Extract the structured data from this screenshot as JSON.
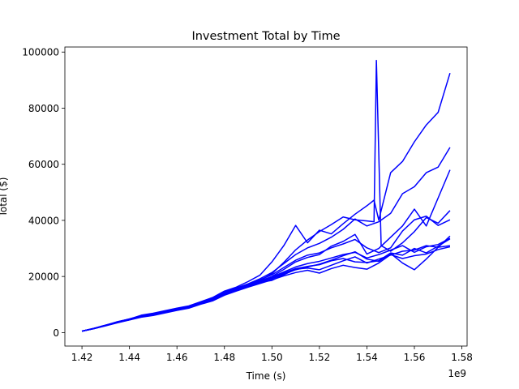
{
  "chart_data": {
    "type": "line",
    "title": "Investment Total by Time",
    "xlabel": "Time (s)",
    "ylabel": "Total ($)",
    "x_offset_label": "1e9",
    "xlim": [
      1.4128,
      1.5822
    ],
    "ylim": [
      -4800,
      101800
    ],
    "x_ticks": [
      1.42,
      1.44,
      1.46,
      1.48,
      1.5,
      1.52,
      1.54,
      1.56,
      1.58
    ],
    "x_tick_labels": [
      "1.42",
      "1.44",
      "1.46",
      "1.48",
      "1.50",
      "1.52",
      "1.54",
      "1.56",
      "1.58"
    ],
    "y_ticks": [
      0,
      20000,
      40000,
      60000,
      80000,
      100000
    ],
    "y_tick_labels": [
      "0",
      "20000",
      "40000",
      "60000",
      "80000",
      "100000"
    ],
    "line_color": "#0000ff",
    "grid": false,
    "legend": "none",
    "series": [
      {
        "x": [
          1.42,
          1.425,
          1.43,
          1.435,
          1.44,
          1.445,
          1.45,
          1.455,
          1.46,
          1.465,
          1.47,
          1.475,
          1.48,
          1.485,
          1.49,
          1.495,
          1.5,
          1.505,
          1.51,
          1.515,
          1.52,
          1.525,
          1.53,
          1.535,
          1.54,
          1.543,
          1.545,
          1.55,
          1.555,
          1.56,
          1.565,
          1.57,
          1.575
        ],
        "y": [
          500,
          1500,
          2600,
          3900,
          4800,
          6200,
          6900,
          7800,
          8700,
          9500,
          11000,
          12500,
          14800,
          16200,
          18200,
          20500,
          25200,
          31000,
          38200,
          32000,
          36500,
          35200,
          38800,
          42200,
          45200,
          47200,
          40100,
          57000,
          61000,
          68000,
          74000,
          78500,
          92500
        ]
      },
      {
        "x": [
          1.42,
          1.425,
          1.43,
          1.435,
          1.44,
          1.445,
          1.45,
          1.455,
          1.46,
          1.465,
          1.47,
          1.475,
          1.48,
          1.485,
          1.49,
          1.495,
          1.5,
          1.505,
          1.51,
          1.515,
          1.52,
          1.525,
          1.53,
          1.535,
          1.54,
          1.543,
          1.544,
          1.546,
          1.55,
          1.555,
          1.56,
          1.565,
          1.57,
          1.575
        ],
        "y": [
          500,
          1400,
          2500,
          3600,
          4600,
          5800,
          6600,
          7500,
          8400,
          9300,
          10800,
          12000,
          14000,
          15600,
          17000,
          18500,
          21000,
          25000,
          29500,
          33000,
          36000,
          38500,
          41200,
          40200,
          39800,
          39500,
          97000,
          31000,
          29000,
          32000,
          36000,
          41000,
          39000,
          43500
        ]
      },
      {
        "x": [
          1.42,
          1.425,
          1.43,
          1.435,
          1.44,
          1.445,
          1.45,
          1.455,
          1.46,
          1.465,
          1.47,
          1.475,
          1.48,
          1.485,
          1.49,
          1.495,
          1.5,
          1.505,
          1.51,
          1.515,
          1.52,
          1.525,
          1.53,
          1.535,
          1.54,
          1.545,
          1.55,
          1.555,
          1.56,
          1.565,
          1.57,
          1.575
        ],
        "y": [
          500,
          1500,
          2700,
          3800,
          4900,
          6000,
          6800,
          7700,
          8600,
          9400,
          10900,
          12300,
          14500,
          15900,
          17400,
          19200,
          21400,
          24600,
          27800,
          30200,
          31800,
          34000,
          36800,
          40500,
          38000,
          39500,
          42500,
          49500,
          52000,
          57000,
          59000,
          66000
        ]
      },
      {
        "x": [
          1.42,
          1.425,
          1.43,
          1.435,
          1.44,
          1.445,
          1.45,
          1.455,
          1.46,
          1.465,
          1.47,
          1.475,
          1.48,
          1.485,
          1.49,
          1.495,
          1.5,
          1.505,
          1.51,
          1.515,
          1.52,
          1.525,
          1.53,
          1.535,
          1.54,
          1.545,
          1.55,
          1.555,
          1.56,
          1.565,
          1.57,
          1.575
        ],
        "y": [
          500,
          1400,
          2500,
          3700,
          4700,
          5700,
          6500,
          7400,
          8300,
          9100,
          10600,
          11900,
          14100,
          15600,
          17000,
          18400,
          20000,
          22500,
          25200,
          26800,
          27800,
          30800,
          32500,
          35000,
          28000,
          30000,
          34000,
          38000,
          44000,
          38000,
          48000,
          58000
        ]
      },
      {
        "x": [
          1.42,
          1.425,
          1.43,
          1.435,
          1.44,
          1.445,
          1.45,
          1.455,
          1.46,
          1.465,
          1.47,
          1.475,
          1.48,
          1.485,
          1.49,
          1.495,
          1.5,
          1.505,
          1.51,
          1.515,
          1.52,
          1.525,
          1.53,
          1.535,
          1.54,
          1.545,
          1.55,
          1.555,
          1.56,
          1.565,
          1.57,
          1.575
        ],
        "y": [
          500,
          1500,
          2600,
          3800,
          4800,
          5900,
          6700,
          7600,
          8500,
          9300,
          10800,
          12200,
          14200,
          15700,
          17200,
          18800,
          20600,
          23200,
          25800,
          27600,
          28400,
          30200,
          31600,
          33200,
          30200,
          28500,
          30200,
          36200,
          40200,
          41500,
          38200,
          40200
        ]
      },
      {
        "x": [
          1.42,
          1.425,
          1.43,
          1.435,
          1.44,
          1.445,
          1.45,
          1.455,
          1.46,
          1.465,
          1.47,
          1.475,
          1.48,
          1.485,
          1.49,
          1.495,
          1.5,
          1.505,
          1.51,
          1.515,
          1.52,
          1.525,
          1.53,
          1.535,
          1.54,
          1.545,
          1.55,
          1.555,
          1.56,
          1.565,
          1.57,
          1.575
        ],
        "y": [
          500,
          1400,
          2400,
          3500,
          4500,
          5600,
          6200,
          7200,
          8100,
          8900,
          10300,
          11500,
          13500,
          15000,
          16500,
          17800,
          19200,
          20800,
          22400,
          23400,
          24400,
          25800,
          27400,
          28800,
          26200,
          25400,
          28200,
          24800,
          22400,
          26200,
          30400,
          34400
        ]
      },
      {
        "x": [
          1.42,
          1.425,
          1.43,
          1.435,
          1.44,
          1.445,
          1.45,
          1.455,
          1.46,
          1.465,
          1.47,
          1.475,
          1.48,
          1.485,
          1.49,
          1.495,
          1.5,
          1.505,
          1.51,
          1.515,
          1.52,
          1.525,
          1.53,
          1.535,
          1.54,
          1.545,
          1.55,
          1.555,
          1.56,
          1.565,
          1.57,
          1.575
        ],
        "y": [
          500,
          1500,
          2600,
          3600,
          4600,
          5700,
          6400,
          7300,
          8200,
          9000,
          10500,
          11800,
          13800,
          15300,
          16800,
          18000,
          19800,
          21600,
          23400,
          24600,
          25400,
          26600,
          27800,
          28600,
          26600,
          27800,
          29400,
          31000,
          28600,
          30600,
          31400,
          33600
        ]
      },
      {
        "x": [
          1.42,
          1.425,
          1.43,
          1.435,
          1.44,
          1.445,
          1.45,
          1.455,
          1.46,
          1.465,
          1.47,
          1.475,
          1.48,
          1.485,
          1.49,
          1.495,
          1.5,
          1.505,
          1.51,
          1.515,
          1.52,
          1.525,
          1.53,
          1.535,
          1.54,
          1.545,
          1.55,
          1.555,
          1.56,
          1.565,
          1.57,
          1.575
        ],
        "y": [
          500,
          1400,
          2500,
          3700,
          4700,
          5800,
          6600,
          7500,
          8300,
          9100,
          10600,
          11900,
          13900,
          15400,
          16800,
          17900,
          18600,
          20600,
          22600,
          23000,
          22400,
          24000,
          25600,
          27000,
          24800,
          26200,
          27600,
          29000,
          29400,
          31000,
          30400,
          31000
        ]
      },
      {
        "x": [
          1.42,
          1.425,
          1.43,
          1.435,
          1.44,
          1.445,
          1.45,
          1.455,
          1.46,
          1.465,
          1.47,
          1.475,
          1.48,
          1.485,
          1.49,
          1.495,
          1.5,
          1.505,
          1.51,
          1.515,
          1.52,
          1.525,
          1.53,
          1.535,
          1.54,
          1.545,
          1.55,
          1.555,
          1.56,
          1.565,
          1.57,
          1.575
        ],
        "y": [
          500,
          1500,
          2600,
          3800,
          4800,
          5800,
          6500,
          7400,
          8400,
          9200,
          10700,
          12100,
          14000,
          15500,
          16900,
          18300,
          19400,
          21200,
          22800,
          23600,
          24200,
          25600,
          26400,
          25200,
          25000,
          25600,
          28400,
          27600,
          30000,
          28400,
          30800,
          33400
        ]
      },
      {
        "x": [
          1.42,
          1.425,
          1.43,
          1.435,
          1.44,
          1.445,
          1.45,
          1.455,
          1.46,
          1.465,
          1.47,
          1.475,
          1.48,
          1.485,
          1.49,
          1.495,
          1.5,
          1.505,
          1.51,
          1.515,
          1.52,
          1.525,
          1.53,
          1.535,
          1.54,
          1.545,
          1.55,
          1.555,
          1.56,
          1.565,
          1.57,
          1.575
        ],
        "y": [
          500,
          1400,
          2500,
          3600,
          4500,
          5500,
          6100,
          7000,
          7900,
          8700,
          10100,
          11300,
          13300,
          14800,
          16200,
          17500,
          18800,
          20200,
          21400,
          22200,
          21200,
          22800,
          24000,
          23200,
          22600,
          24800,
          27800,
          26400,
          27400,
          28000,
          29600,
          30600
        ]
      }
    ]
  }
}
